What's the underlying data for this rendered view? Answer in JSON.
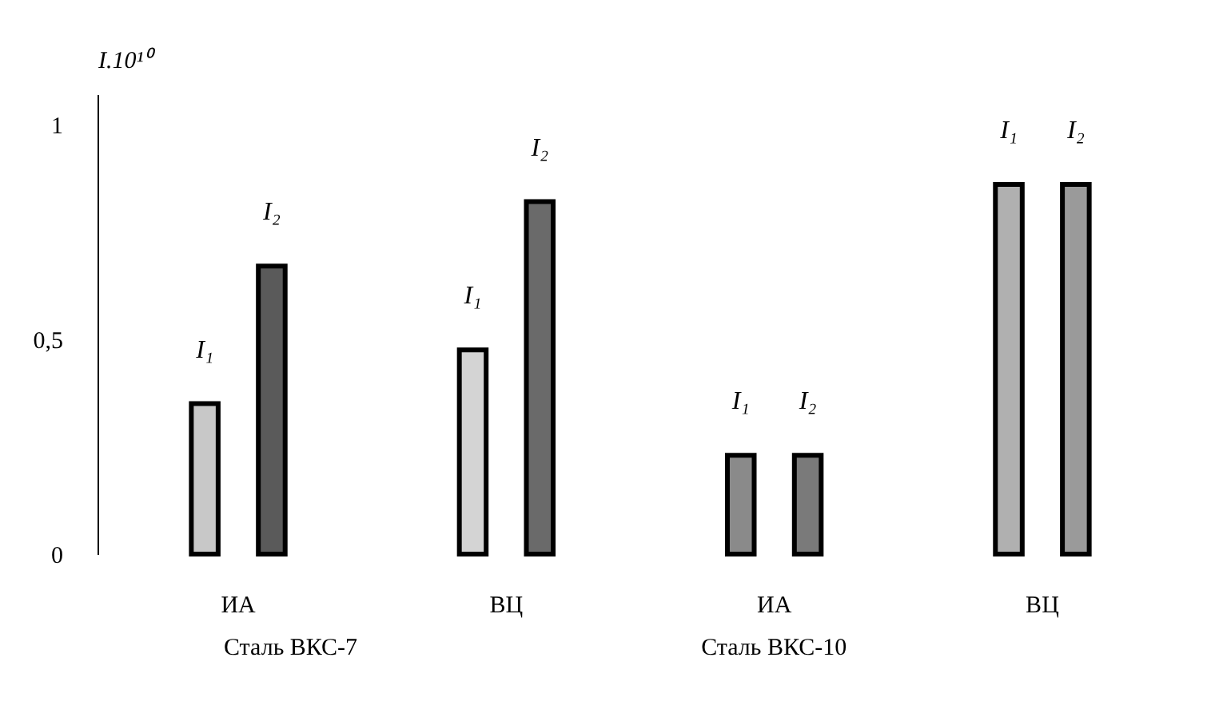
{
  "chart_data": {
    "type": "bar",
    "ylabel": "I.10¹⁰",
    "categories": [
      "ИА",
      "ВЦ",
      "ИА",
      "ВЦ"
    ],
    "series": [
      {
        "name": "I₁",
        "colors": [
          "#c8c8c8",
          "#d4d4d4",
          "#8a8a8a",
          "#b0b0b0"
        ],
        "values": [
          0.35,
          0.475,
          0.23,
          0.86
        ]
      },
      {
        "name": "I₂",
        "colors": [
          "#5a5a5a",
          "#6a6a6a",
          "#7a7a7a",
          "#9a9a9a"
        ],
        "values": [
          0.67,
          0.82,
          0.23,
          0.86
        ]
      }
    ],
    "ylim": [
      0,
      1.07
    ],
    "yticks": [
      0,
      {
        "value": 0.5,
        "label": "0,5"
      },
      1
    ],
    "grid": false,
    "annotations": [
      "Сталь ВКС-7",
      "Сталь ВКС-10"
    ]
  }
}
